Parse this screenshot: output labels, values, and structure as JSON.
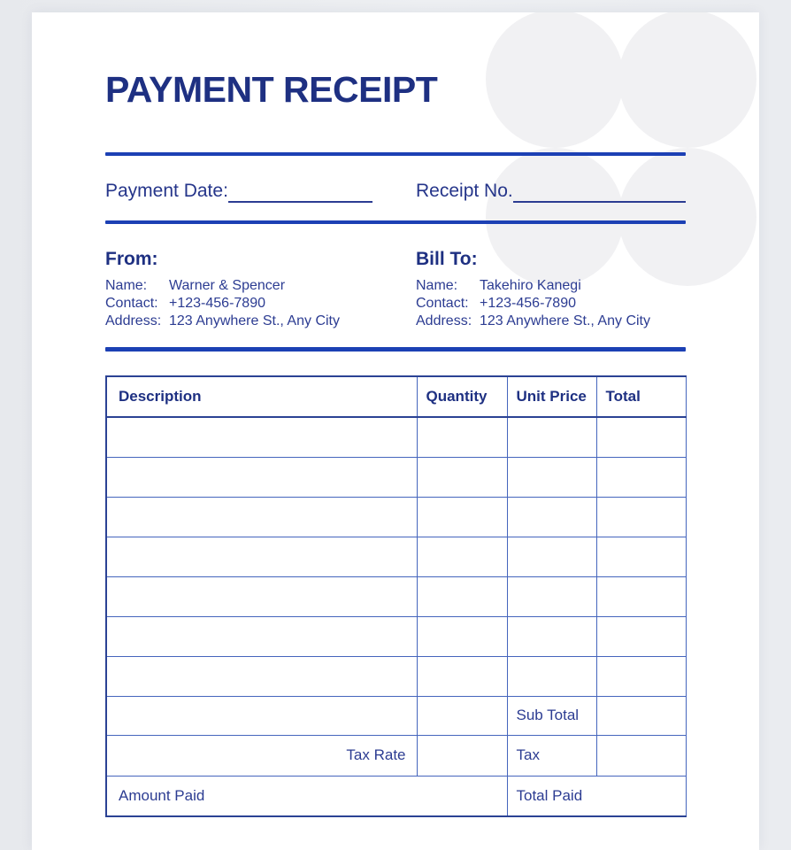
{
  "title": "PAYMENT RECEIPT",
  "colors": {
    "accent_rule": "#1c40b4",
    "title_navy": "#1e3082",
    "body_navy": "#2c3c92",
    "table_border": "#4565bd",
    "table_outer_border": "#2b4294",
    "page_background": "#ffffff",
    "canvas_background": "#edeff2",
    "decorative_circle": "#f1f1f3"
  },
  "meta": {
    "payment_date_label": "Payment Date:",
    "payment_date_value": "",
    "receipt_no_label": "Receipt No.",
    "receipt_no_value": ""
  },
  "from": {
    "heading": "From:",
    "fields": [
      {
        "label": "Name:",
        "value": "Warner & Spencer"
      },
      {
        "label": "Contact:",
        "value": "+123-456-7890"
      },
      {
        "label": "Address:",
        "value": "123 Anywhere St., Any City"
      }
    ]
  },
  "bill_to": {
    "heading": "Bill To:",
    "fields": [
      {
        "label": "Name:",
        "value": "Takehiro Kanegi"
      },
      {
        "label": "Contact:",
        "value": "+123-456-7890"
      },
      {
        "label": "Address:",
        "value": "123 Anywhere St., Any City"
      }
    ]
  },
  "table": {
    "columns": [
      "Description",
      "Quantity",
      "Unit Price",
      "Total"
    ],
    "blank_row_count": 7,
    "line_items": [],
    "summary": {
      "sub_total_label": "Sub Total",
      "sub_total_value": "",
      "tax_rate_label": "Tax Rate",
      "tax_rate_value": "",
      "tax_label": "Tax",
      "tax_value": "",
      "amount_paid_label": "Amount Paid",
      "amount_paid_value": "",
      "total_paid_label": "Total Paid",
      "total_paid_value": ""
    }
  }
}
